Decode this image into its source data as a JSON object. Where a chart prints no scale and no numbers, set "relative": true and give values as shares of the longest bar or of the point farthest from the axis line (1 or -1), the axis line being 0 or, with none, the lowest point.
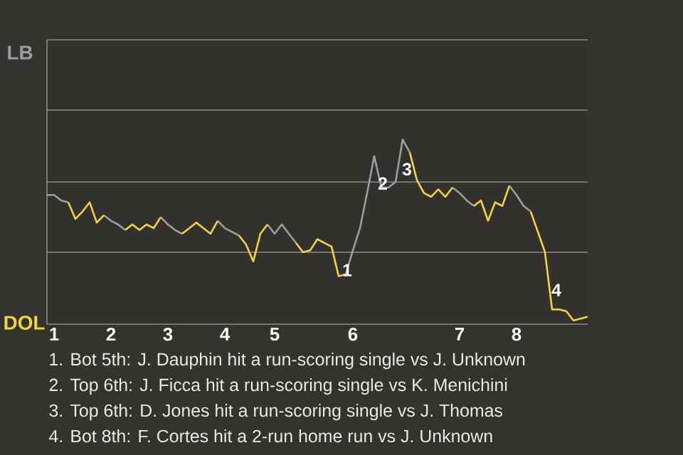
{
  "chart_data": {
    "type": "line",
    "relative": true,
    "ref_lines": [
      {
        "axis": "y",
        "value": 0.39
      },
      {
        "axis": "y",
        "value": 0.77
      },
      {
        "axis": "y",
        "value": 1.16
      },
      {
        "axis": "y",
        "value": 1.54
      }
    ],
    "categories": [
      null,
      "1",
      null,
      null,
      null,
      null,
      null,
      null,
      null,
      "2",
      null,
      null,
      null,
      null,
      null,
      null,
      null,
      "3",
      null,
      null,
      null,
      null,
      null,
      null,
      null,
      "4",
      null,
      null,
      null,
      null,
      null,
      null,
      "5",
      null,
      null,
      null,
      null,
      null,
      null,
      null,
      null,
      null,
      null,
      "6",
      null,
      null,
      null,
      null,
      null,
      null,
      null,
      null,
      null,
      null,
      null,
      null,
      null,
      null,
      "7",
      null,
      null,
      null,
      null,
      null,
      null,
      null,
      "8",
      null,
      null,
      null,
      null,
      null,
      null,
      null,
      null,
      null,
      null
    ],
    "series": [
      {
        "color": "#9a9ea2",
        "values": [
          0.7,
          0.7,
          0.67,
          0.66,
          null,
          null,
          null,
          null,
          0.59,
          0.56,
          0.54,
          0.51,
          null,
          null,
          null,
          null,
          0.58,
          0.54,
          0.51,
          0.49,
          null,
          null,
          null,
          null,
          0.56,
          0.52,
          0.5,
          0.48,
          null,
          null,
          null,
          0.54,
          0.49,
          0.54,
          0.49,
          0.44,
          null,
          null,
          null,
          null,
          null,
          null,
          0.27,
          0.4,
          0.52,
          0.71,
          0.91,
          0.74,
          0.74,
          0.77,
          1,
          0.93,
          null,
          null,
          null,
          null,
          null,
          0.74,
          0.71,
          0.67,
          0.64,
          null,
          null,
          null,
          null,
          0.75,
          0.7,
          0.64,
          0.61,
          null,
          null,
          null,
          null,
          null,
          null,
          null,
          null
        ]
      },
      {
        "color": "#f2d43c",
        "values": [
          null,
          null,
          null,
          0.66,
          0.57,
          0.61,
          0.66,
          0.55,
          0.59,
          null,
          null,
          0.51,
          0.54,
          0.51,
          0.54,
          0.52,
          0.58,
          null,
          null,
          0.49,
          0.52,
          0.55,
          0.52,
          0.49,
          0.56,
          null,
          null,
          0.48,
          0.43,
          0.34,
          0.49,
          0.54,
          null,
          null,
          null,
          0.44,
          0.39,
          0.4,
          0.46,
          0.44,
          0.42,
          0.26,
          0.27,
          null,
          null,
          null,
          null,
          null,
          null,
          null,
          null,
          0.93,
          0.78,
          0.71,
          0.69,
          0.73,
          0.69,
          0.74,
          null,
          null,
          0.64,
          0.67,
          0.56,
          0.66,
          0.64,
          0.75,
          null,
          null,
          0.61,
          0.5,
          0.39,
          0.08,
          0.08,
          0.07,
          0.02,
          0.03,
          0.04
        ]
      }
    ],
    "annotations": [
      "LB",
      "DOL",
      "1",
      "2",
      "3",
      "4",
      "1. Bot 5th: J. Dauphin hit a run-scoring single vs J. Unknown",
      "2. Top 6th: J. Ficca hit a run-scoring single vs K. Menichini",
      "3. Top 6th: D. Jones hit a run-scoring single vs J. Thomas",
      "4. Bot 8th: F. Cortes hit a 2-run home run vs J. Unknown"
    ]
  }
}
